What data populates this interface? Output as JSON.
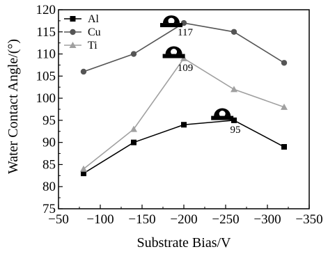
{
  "chart_data": {
    "type": "line",
    "title": "",
    "xlabel": "Substrate Bias/V",
    "ylabel": "Water Contact Angle/(°)",
    "xlim": [
      -50,
      -350
    ],
    "ylim": [
      75,
      120
    ],
    "x_ticks": [
      -50,
      -100,
      -150,
      -200,
      -250,
      -300,
      -350
    ],
    "y_ticks": [
      75,
      80,
      85,
      90,
      95,
      100,
      105,
      110,
      115,
      120
    ],
    "x_tick_labels": [
      "−50",
      "−100",
      "−150",
      "−200",
      "−250",
      "−300",
      "−350"
    ],
    "y_tick_labels": [
      "75",
      "80",
      "85",
      "90",
      "95",
      "100",
      "105",
      "110",
      "115",
      "120"
    ],
    "x": [
      -80,
      -140,
      -200,
      -260,
      -320
    ],
    "series": [
      {
        "name": "Al",
        "values": [
          83,
          90,
          94,
          95,
          89
        ],
        "marker": "square",
        "color": "#000000"
      },
      {
        "name": "Cu",
        "values": [
          106,
          110,
          117,
          115,
          108
        ],
        "marker": "circle",
        "color": "#555555"
      },
      {
        "name": "Ti",
        "values": [
          84,
          93,
          109,
          102,
          98
        ],
        "marker": "triangle",
        "color": "#a0a0a0"
      }
    ],
    "legend_position": "top-left",
    "grid": false,
    "annotations": [
      {
        "text": "117",
        "x": -200,
        "y": 117,
        "series": "Cu"
      },
      {
        "text": "109",
        "x": -200,
        "y": 109,
        "series": "Ti"
      },
      {
        "text": "95",
        "x": -260,
        "y": 95,
        "series": "Al"
      }
    ],
    "droplet_icons": [
      {
        "name": "droplet-icon",
        "x": -185,
        "y": 117
      },
      {
        "name": "droplet-icon",
        "x": -188,
        "y": 110
      },
      {
        "name": "droplet-icon",
        "x": -246,
        "y": 96
      }
    ]
  }
}
